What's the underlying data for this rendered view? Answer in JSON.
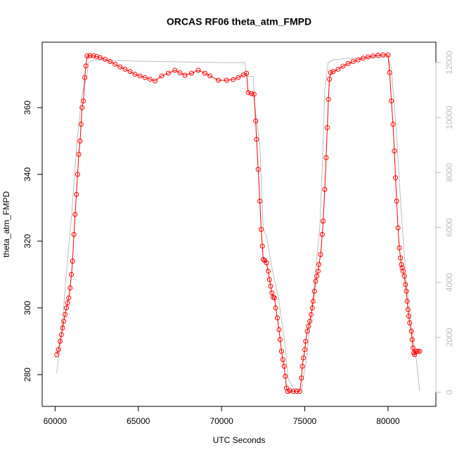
{
  "chart_data": {
    "type": "line",
    "title": "ORCAS RF06 theta_atm_FMPD",
    "x_label": "UTC Seconds",
    "y_label": "theta_atm_FMPD",
    "xlim": [
      59224,
      82876
    ],
    "ylim": [
      270.5,
      379.6
    ],
    "y2lim": [
      -511,
      12742
    ],
    "xticks": [
      60000,
      65000,
      70000,
      75000,
      80000
    ],
    "yticks": [
      280,
      300,
      320,
      340,
      360
    ],
    "y2ticks": [
      0,
      2000,
      4000,
      6000,
      8000,
      10000,
      12000
    ],
    "series": [
      {
        "color": "#ff0000",
        "x": [
          60100,
          60200,
          60300,
          60380,
          60450,
          60520,
          60600,
          60680,
          60750,
          60820,
          60900,
          60980,
          61050,
          61130,
          61200,
          61280,
          61350,
          61420,
          61500,
          61560,
          61620,
          61700,
          61780,
          61850,
          61920,
          62100,
          62300,
          62500,
          62700,
          63000,
          63300,
          63600,
          63900,
          64200,
          64500,
          64800,
          65100,
          65400,
          65700,
          66000,
          66400,
          66800,
          67200,
          67500,
          67800,
          68200,
          68600,
          69000,
          69300,
          69800,
          70300,
          70700,
          71000,
          71300,
          71500,
          71600,
          71800,
          71950,
          72050,
          72100,
          72200,
          72300,
          72380,
          72450,
          72500,
          72600,
          72700,
          72800,
          72880,
          72950,
          73020,
          73100,
          73180,
          73250,
          73350,
          73450,
          73520,
          73600,
          73680,
          73760,
          73830,
          73900,
          73980,
          74100,
          74300,
          74500,
          74700,
          74800,
          74850,
          74920,
          75000,
          75050,
          75150,
          75220,
          75300,
          75380,
          75450,
          75500,
          75580,
          75650,
          75720,
          75800,
          75850,
          75950,
          76050,
          76100,
          76200,
          76280,
          76350,
          76420,
          76480,
          76550,
          76700,
          77000,
          77300,
          77600,
          77900,
          78200,
          78500,
          78800,
          79100,
          79400,
          79700,
          80000,
          80100,
          80200,
          80300,
          80380,
          80450,
          80520,
          80600,
          80680,
          80750,
          80800,
          80850,
          80900,
          80980,
          81050,
          81100,
          81150,
          81200,
          81250,
          81300,
          81400,
          81450,
          81500,
          81550,
          81600,
          81700,
          81800,
          81900
        ],
        "values": [
          286,
          287.5,
          290,
          292,
          294,
          296,
          298,
          300,
          301.5,
          303,
          306,
          310,
          314,
          322,
          328,
          334,
          340,
          346,
          350,
          355,
          360,
          362,
          369,
          372.5,
          375.5,
          375.6,
          375.5,
          375.3,
          375,
          374.5,
          373.8,
          373,
          372.2,
          371.5,
          370.8,
          370,
          369.5,
          369,
          368.5,
          368,
          369.5,
          370.3,
          371.2,
          370.4,
          369.7,
          370.3,
          371.2,
          370.3,
          369.5,
          368.2,
          368.2,
          368.4,
          369,
          369.8,
          370.3,
          364.5,
          364.2,
          364,
          356,
          350.5,
          341.5,
          332,
          323.5,
          318.5,
          314.5,
          314.2,
          313.5,
          311,
          308.5,
          306.5,
          304.5,
          303.2,
          303,
          300,
          297,
          293.5,
          290.5,
          287,
          284.5,
          282.5,
          279.5,
          276,
          275,
          275.2,
          275,
          275,
          275,
          279,
          282.5,
          285,
          287.5,
          290,
          293,
          294.5,
          296,
          298,
          300,
          302,
          305,
          308,
          309.5,
          311,
          313,
          316,
          322,
          326,
          335.5,
          345,
          354,
          362.5,
          368.5,
          370.5,
          370.8,
          371.5,
          372.4,
          373.2,
          373.8,
          374.3,
          374.8,
          375.2,
          375.5,
          375.7,
          375.8,
          375.8,
          370.5,
          362,
          355,
          347,
          339,
          332,
          324,
          318,
          315,
          313,
          312,
          311,
          309.5,
          307,
          305,
          302,
          299.5,
          297.5,
          295.5,
          293,
          290.5,
          288,
          286.5,
          286,
          287,
          287,
          287
        ]
      },
      {
        "color": "#bebebe",
        "axis": "y2",
        "x": [
          60100,
          60400,
          60700,
          61000,
          61300,
          61600,
          61900,
          62000,
          62400,
          65000,
          70000,
          71400,
          71500,
          71900,
          72000,
          72300,
          72500,
          72600,
          72700,
          73000,
          73400,
          73800,
          74000,
          74300,
          74800,
          75100,
          75500,
          75900,
          76100,
          76200,
          76400,
          76700,
          77500,
          80000,
          80200,
          80500,
          80800,
          81100,
          81400,
          81700,
          81900
        ],
        "values": [
          700,
          2200,
          4500,
          6500,
          9000,
          10800,
          11500,
          12000,
          12100,
          12050,
          12000,
          12000,
          11500,
          11500,
          10400,
          9000,
          6000,
          5800,
          5700,
          4600,
          3500,
          1800,
          500,
          150,
          100,
          1200,
          3500,
          6000,
          9000,
          11000,
          12000,
          12100,
          12150,
          12200,
          11800,
          9500,
          6500,
          4000,
          2500,
          1200,
          50
        ]
      }
    ]
  }
}
